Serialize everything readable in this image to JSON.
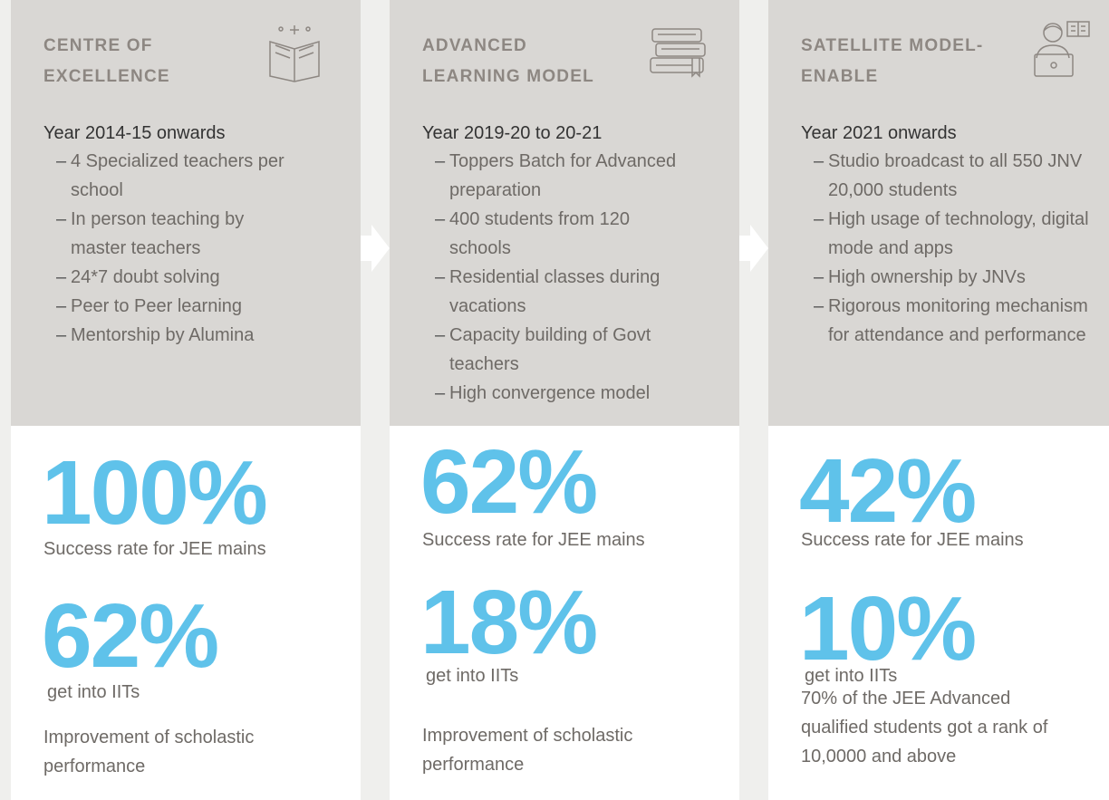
{
  "columns": [
    {
      "title": [
        "CENTRE OF",
        "EXCELLENCE"
      ],
      "period": "Year 2014-15 onwards",
      "bullets": [
        "4 Specialized teachers per school",
        "In person teaching by master teachers",
        "24*7 doubt solving",
        "Peer to Peer learning",
        "Mentorship by Alumina"
      ],
      "stats": [
        {
          "value": "100%",
          "label": "Success rate for JEE mains"
        },
        {
          "value": "62%",
          "label": "get into IITs"
        }
      ],
      "note": "Improvement of scholastic performance"
    },
    {
      "title": [
        "ADVANCED",
        "LEARNING MODEL"
      ],
      "period": "Year 2019-20 to 20-21",
      "bullets": [
        "Toppers Batch for Advanced preparation",
        "400 students from 120 schools",
        "Residential classes during vacations",
        "Capacity building of Govt teachers",
        "High convergence model"
      ],
      "stats": [
        {
          "value": "62%",
          "label": "Success rate for JEE mains"
        },
        {
          "value": "18%",
          "label": "get into IITs"
        }
      ],
      "note": "Improvement of scholastic performance"
    },
    {
      "title": [
        "SATELLITE MODEL-",
        "ENABLE"
      ],
      "period": "Year 2021 onwards",
      "bullets": [
        "Studio broadcast to all 550 JNV 20,000 students",
        "High usage of technology, digital mode and apps",
        "High ownership by JNVs",
        "Rigorous monitoring mechanism for attendance and performance"
      ],
      "stats": [
        {
          "value": "42%",
          "label": "Success rate for JEE mains"
        },
        {
          "value": "10%",
          "label": "get into IITs"
        }
      ],
      "note": "70% of the JEE Advanced qualified students got a rank of 10,0000 and above"
    }
  ]
}
